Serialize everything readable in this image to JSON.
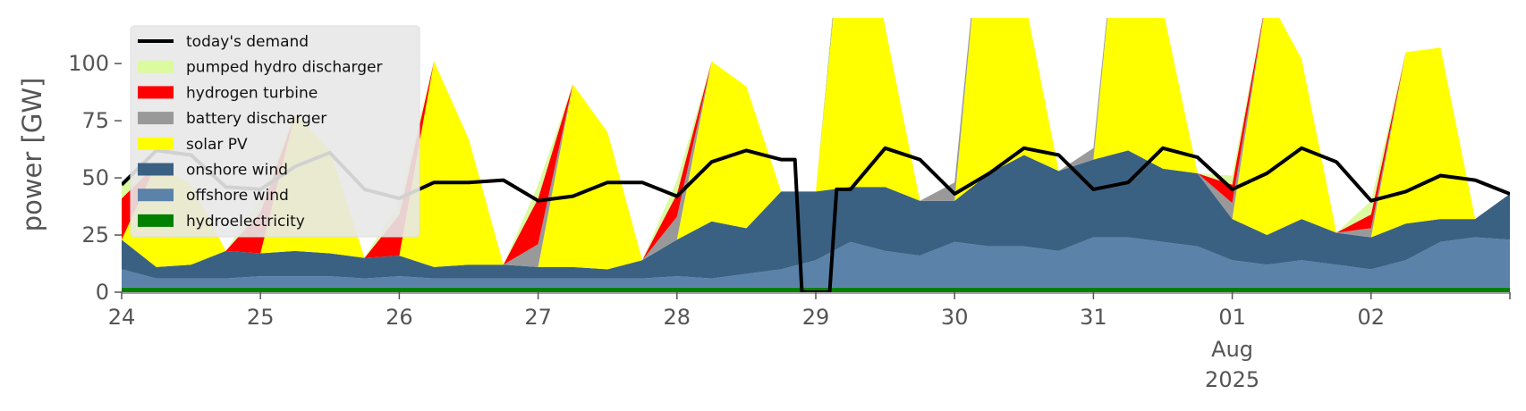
{
  "chart_data": {
    "type": "area",
    "ylabel": "power [GW]",
    "xlabel": "",
    "ylim": [
      0,
      120
    ],
    "yticks": [
      0,
      25,
      50,
      75,
      100
    ],
    "x_range_days": [
      0,
      10
    ],
    "x_ticks": [
      {
        "day": 0,
        "label": "24"
      },
      {
        "day": 1,
        "label": "25"
      },
      {
        "day": 2,
        "label": "26"
      },
      {
        "day": 3,
        "label": "27"
      },
      {
        "day": 4,
        "label": "28"
      },
      {
        "day": 5,
        "label": "29"
      },
      {
        "day": 6,
        "label": "30"
      },
      {
        "day": 7,
        "label": "31"
      },
      {
        "day": 8,
        "label": "01"
      },
      {
        "day": 9,
        "label": "02"
      }
    ],
    "x_sublabel": {
      "day": 8,
      "month": "Aug",
      "year": "2025"
    },
    "grid": false,
    "legend_position": "top-left",
    "x": [
      0,
      0.25,
      0.5,
      0.75,
      1,
      1.25,
      1.5,
      1.75,
      2,
      2.25,
      2.5,
      2.75,
      3,
      3.25,
      3.5,
      3.75,
      4,
      4.25,
      4.5,
      4.75,
      5,
      5.25,
      5.5,
      5.75,
      6,
      6.25,
      6.5,
      6.75,
      7,
      7.25,
      7.5,
      7.75,
      8,
      8.25,
      8.5,
      8.75,
      9,
      9.25,
      9.5,
      9.75,
      10
    ],
    "series": [
      {
        "name": "hydroelectricity",
        "color": "#008000",
        "values": [
          2,
          2,
          2,
          2,
          2,
          2,
          2,
          2,
          2,
          2,
          2,
          2,
          2,
          2,
          2,
          2,
          2,
          2,
          2,
          2,
          2,
          2,
          2,
          2,
          2,
          2,
          2,
          2,
          2,
          2,
          2,
          2,
          2,
          2,
          2,
          2,
          2,
          2,
          2,
          2,
          2
        ]
      },
      {
        "name": "offshore wind",
        "color": "#5b82a8",
        "values": [
          8,
          4,
          4,
          4,
          5,
          5,
          5,
          4,
          5,
          4,
          4,
          4,
          4,
          4,
          4,
          4,
          5,
          4,
          6,
          8,
          12,
          20,
          16,
          14,
          20,
          18,
          18,
          16,
          22,
          22,
          20,
          18,
          12,
          10,
          12,
          10,
          8,
          12,
          20,
          22,
          21
        ]
      },
      {
        "name": "onshore wind",
        "color": "#3b6182",
        "values": [
          13,
          5,
          6,
          12,
          10,
          11,
          10,
          9,
          9,
          5,
          6,
          6,
          5,
          5,
          4,
          8,
          16,
          25,
          20,
          34,
          30,
          24,
          28,
          24,
          18,
          32,
          40,
          35,
          34,
          38,
          32,
          32,
          18,
          13,
          18,
          14,
          14,
          16,
          10,
          8,
          20
        ]
      },
      {
        "name": "solar PV",
        "color": "#ffff00",
        "values": [
          0,
          45,
          35,
          0,
          0,
          60,
          45,
          0,
          0,
          90,
          55,
          0,
          0,
          80,
          60,
          0,
          0,
          70,
          62,
          0,
          0,
          150,
          70,
          0,
          0,
          150,
          70,
          0,
          0,
          150,
          70,
          0,
          0,
          105,
          70,
          0,
          0,
          75,
          75,
          0,
          0
        ]
      },
      {
        "name": "battery discharger",
        "color": "#999999",
        "values": [
          0,
          0,
          0,
          0,
          0,
          0,
          0,
          0,
          0,
          0,
          0,
          0,
          10,
          0,
          0,
          0,
          10,
          0,
          0,
          0,
          0,
          5,
          0,
          0,
          8,
          0,
          0,
          0,
          5,
          0,
          0,
          0,
          7,
          0,
          0,
          0,
          4,
          0,
          0,
          0,
          0
        ]
      },
      {
        "name": "hydrogen turbine",
        "color": "#ff0000",
        "values": [
          18,
          0,
          0,
          0,
          18,
          0,
          0,
          0,
          18,
          0,
          0,
          0,
          20,
          0,
          0,
          0,
          10,
          0,
          0,
          0,
          0,
          0,
          0,
          0,
          0,
          0,
          0,
          0,
          0,
          0,
          0,
          0,
          8,
          0,
          0,
          0,
          6,
          0,
          0,
          0,
          0
        ]
      },
      {
        "name": "pumped hydro discharger",
        "color": "#dcfaa0",
        "values": [
          6,
          0,
          0,
          0,
          6,
          0,
          0,
          0,
          6,
          0,
          0,
          0,
          6,
          0,
          0,
          0,
          6,
          0,
          0,
          0,
          0,
          5,
          0,
          0,
          0,
          0,
          0,
          0,
          0,
          0,
          0,
          0,
          4,
          0,
          0,
          0,
          6,
          0,
          0,
          0,
          0
        ]
      }
    ],
    "demand": {
      "name": "today's demand",
      "color": "#000000",
      "points": [
        [
          0,
          47
        ],
        [
          0.25,
          62
        ],
        [
          0.5,
          60
        ],
        [
          0.75,
          46
        ],
        [
          1,
          45
        ],
        [
          1.25,
          55
        ],
        [
          1.5,
          61
        ],
        [
          1.75,
          45
        ],
        [
          2,
          41
        ],
        [
          2.25,
          48
        ],
        [
          2.5,
          48
        ],
        [
          2.75,
          49
        ],
        [
          3,
          40
        ],
        [
          3.25,
          42
        ],
        [
          3.5,
          48
        ],
        [
          3.75,
          48
        ],
        [
          4,
          42
        ],
        [
          4.25,
          57
        ],
        [
          4.5,
          62
        ],
        [
          4.75,
          58
        ],
        [
          4.85,
          58
        ],
        [
          4.9,
          0
        ],
        [
          5.1,
          0
        ],
        [
          5.15,
          45
        ],
        [
          5.25,
          45
        ],
        [
          5.5,
          63
        ],
        [
          5.75,
          58
        ],
        [
          6,
          43
        ],
        [
          6.25,
          52
        ],
        [
          6.5,
          63
        ],
        [
          6.75,
          60
        ],
        [
          7,
          45
        ],
        [
          7.25,
          48
        ],
        [
          7.5,
          63
        ],
        [
          7.75,
          59
        ],
        [
          8,
          45
        ],
        [
          8.25,
          52
        ],
        [
          8.5,
          63
        ],
        [
          8.75,
          57
        ],
        [
          9,
          40
        ],
        [
          9.25,
          44
        ],
        [
          9.5,
          51
        ],
        [
          9.75,
          49
        ],
        [
          10,
          43
        ]
      ]
    }
  },
  "legend": [
    {
      "label": "today's demand",
      "color": "#000000",
      "kind": "line"
    },
    {
      "label": "pumped hydro discharger",
      "color": "#dcfaa0",
      "kind": "patch"
    },
    {
      "label": "hydrogen turbine",
      "color": "#ff0000",
      "kind": "patch"
    },
    {
      "label": "battery discharger",
      "color": "#999999",
      "kind": "patch"
    },
    {
      "label": "solar PV",
      "color": "#ffff00",
      "kind": "patch"
    },
    {
      "label": "onshore wind",
      "color": "#3b6182",
      "kind": "patch"
    },
    {
      "label": "offshore wind",
      "color": "#5b82a8",
      "kind": "patch"
    },
    {
      "label": "hydroelectricity",
      "color": "#008000",
      "kind": "patch"
    }
  ]
}
